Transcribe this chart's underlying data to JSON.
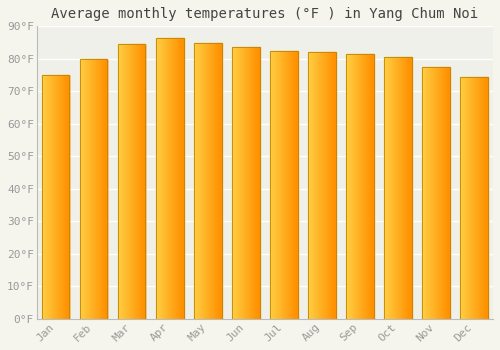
{
  "months": [
    "Jan",
    "Feb",
    "Mar",
    "Apr",
    "May",
    "Jun",
    "Jul",
    "Aug",
    "Sep",
    "Oct",
    "Nov",
    "Dec"
  ],
  "values": [
    75,
    80,
    84.5,
    86.5,
    85,
    83.5,
    82.5,
    82,
    81.5,
    80.5,
    77.5,
    74.5
  ],
  "title": "Average monthly temperatures (°F ) in Yang Chum Noi",
  "ylim": [
    0,
    90
  ],
  "yticks": [
    0,
    10,
    20,
    30,
    40,
    50,
    60,
    70,
    80,
    90
  ],
  "ytick_labels": [
    "0°F",
    "10°F",
    "20°F",
    "30°F",
    "40°F",
    "50°F",
    "60°F",
    "70°F",
    "80°F",
    "90°F"
  ],
  "background_color": "#f5f5ee",
  "plot_bg_color": "#f0f0ea",
  "grid_color": "#ffffff",
  "bar_color_left": "#FFD044",
  "bar_color_right": "#FFA010",
  "bar_edge_color": "#B8860B",
  "title_fontsize": 10,
  "tick_fontsize": 8,
  "bar_width": 0.72
}
